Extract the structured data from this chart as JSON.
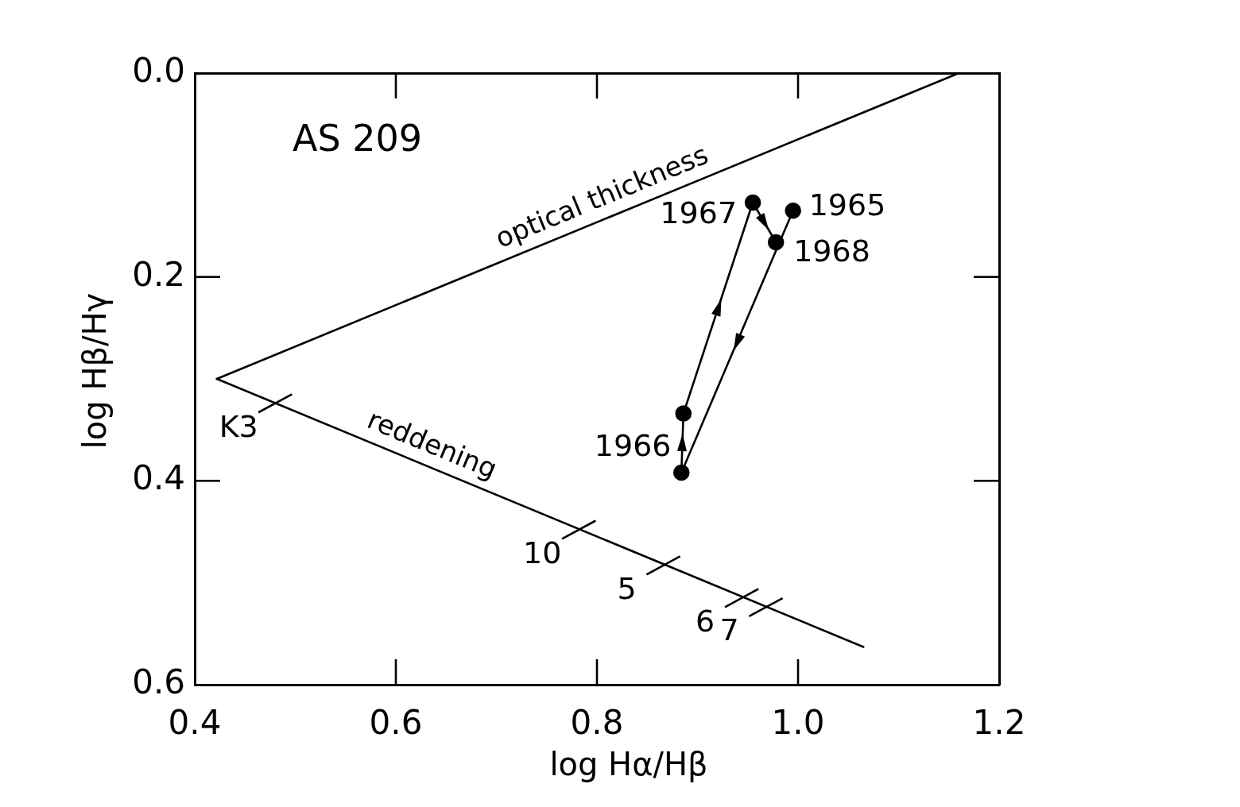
{
  "chart_data": {
    "type": "line",
    "title": "AS 209",
    "xlabel": "log Hα/Hβ",
    "ylabel": "log Hβ/Hγ",
    "xlim": [
      0.4,
      1.2
    ],
    "xticks": [
      0.4,
      0.6,
      0.8,
      {
        "value": 1,
        "label": "1.0"
      },
      1.2
    ],
    "ylim": [
      0.6,
      0
    ],
    "yticks": [
      {
        "value": 0,
        "label": "0.0"
      },
      0.2,
      0.4,
      0.6
    ],
    "series": [
      {
        "name": "optical thickness",
        "color": "#000000",
        "x": [
          0.422,
          1.16
        ],
        "values": [
          0.3,
          0
        ],
        "marker": "none"
      },
      {
        "name": "reddening",
        "color": "#000000",
        "x": [
          0.422,
          1.065
        ],
        "values": [
          0.3,
          0.563
        ],
        "marker": "none"
      },
      {
        "color": "#000000",
        "x": [
          0.995,
          0.884,
          0.886,
          0.955,
          0.978
        ],
        "values": [
          0.135,
          0.392,
          0.334,
          0.127,
          0.166
        ],
        "marker": "circle"
      }
    ],
    "annotations": [
      {
        "text": "1965",
        "x": 0.995,
        "y": 0.135
      },
      {
        "text": "1966",
        "x": 0.885,
        "y": 0.363
      },
      {
        "text": "1967",
        "x": 0.955,
        "y": 0.127
      },
      {
        "text": "1968",
        "x": 0.978,
        "y": 0.166
      },
      {
        "text": "K3",
        "x": 0.48,
        "y": 0.324
      },
      {
        "text": "10",
        "x": 0.782,
        "y": 0.448
      },
      {
        "text": "5",
        "x": 0.866,
        "y": 0.483
      },
      {
        "text": "6",
        "x": 0.944,
        "y": 0.515
      },
      {
        "text": "7",
        "x": 0.968,
        "y": 0.524
      }
    ]
  }
}
